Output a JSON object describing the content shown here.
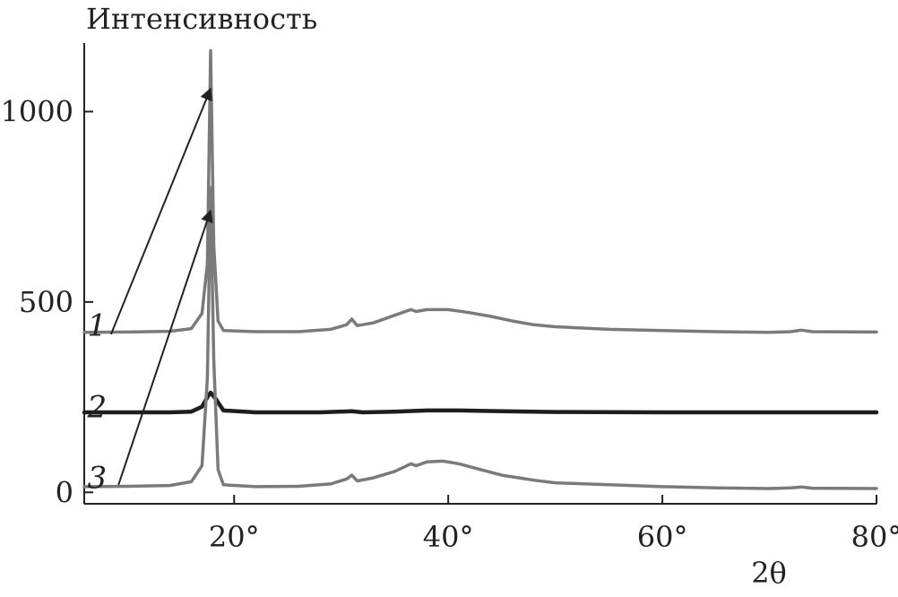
{
  "chart_data": {
    "type": "line",
    "ylabel": "Интенсивность",
    "xlabel": "2θ",
    "xlim": [
      6,
      80
    ],
    "ylim": [
      -30,
      1180
    ],
    "x_ticks": [
      {
        "value": 20,
        "label": "20°"
      },
      {
        "value": 40,
        "label": "40°"
      },
      {
        "value": 60,
        "label": "60°"
      },
      {
        "value": 80,
        "label": "80°"
      }
    ],
    "y_ticks": [
      {
        "value": 0,
        "label": "0"
      },
      {
        "value": 500,
        "label": "500"
      },
      {
        "value": 1000,
        "label": "1000"
      }
    ],
    "grid": false,
    "series": [
      {
        "name": "1",
        "color": "#7a7a7a",
        "points": [
          [
            6,
            420
          ],
          [
            10,
            421
          ],
          [
            14,
            423
          ],
          [
            16,
            430
          ],
          [
            17,
            470
          ],
          [
            17.5,
            600
          ],
          [
            17.8,
            1160
          ],
          [
            18.1,
            650
          ],
          [
            18.5,
            450
          ],
          [
            19,
            425
          ],
          [
            22,
            422
          ],
          [
            26,
            422
          ],
          [
            29,
            428
          ],
          [
            30.5,
            440
          ],
          [
            31,
            455
          ],
          [
            31.5,
            438
          ],
          [
            33,
            445
          ],
          [
            35,
            465
          ],
          [
            36.5,
            480
          ],
          [
            37,
            475
          ],
          [
            38,
            480
          ],
          [
            40,
            480
          ],
          [
            42,
            472
          ],
          [
            44,
            462
          ],
          [
            46,
            450
          ],
          [
            48,
            440
          ],
          [
            50,
            435
          ],
          [
            55,
            428
          ],
          [
            60,
            425
          ],
          [
            65,
            422
          ],
          [
            70,
            420
          ],
          [
            72,
            422
          ],
          [
            73,
            426
          ],
          [
            74,
            422
          ],
          [
            80,
            421
          ]
        ]
      },
      {
        "name": "2",
        "color": "#1e1e1e",
        "points": [
          [
            6,
            210
          ],
          [
            14,
            210
          ],
          [
            16,
            212
          ],
          [
            17,
            225
          ],
          [
            17.5,
            250
          ],
          [
            17.8,
            262
          ],
          [
            18.3,
            245
          ],
          [
            19,
            215
          ],
          [
            22,
            210
          ],
          [
            28,
            210
          ],
          [
            31,
            213
          ],
          [
            32,
            210
          ],
          [
            35,
            212
          ],
          [
            38,
            215
          ],
          [
            41,
            215
          ],
          [
            45,
            213
          ],
          [
            50,
            211
          ],
          [
            60,
            210
          ],
          [
            70,
            210
          ],
          [
            80,
            210
          ]
        ]
      },
      {
        "name": "3",
        "color": "#7a7a7a",
        "points": [
          [
            6,
            15
          ],
          [
            10,
            16
          ],
          [
            14,
            18
          ],
          [
            16,
            28
          ],
          [
            17,
            70
          ],
          [
            17.5,
            300
          ],
          [
            17.8,
            800
          ],
          [
            18.1,
            350
          ],
          [
            18.5,
            60
          ],
          [
            19,
            20
          ],
          [
            22,
            15
          ],
          [
            26,
            16
          ],
          [
            29,
            22
          ],
          [
            30.5,
            35
          ],
          [
            31,
            45
          ],
          [
            31.5,
            30
          ],
          [
            33,
            38
          ],
          [
            35,
            55
          ],
          [
            36.5,
            75
          ],
          [
            37,
            70
          ],
          [
            38,
            80
          ],
          [
            39.5,
            82
          ],
          [
            41,
            75
          ],
          [
            43,
            60
          ],
          [
            45,
            45
          ],
          [
            48,
            32
          ],
          [
            50,
            25
          ],
          [
            55,
            20
          ],
          [
            60,
            15
          ],
          [
            65,
            12
          ],
          [
            70,
            10
          ],
          [
            72,
            12
          ],
          [
            73,
            14
          ],
          [
            74,
            11
          ],
          [
            80,
            10
          ]
        ]
      }
    ],
    "annotations": [
      {
        "series": "1",
        "label": "1",
        "text_at": [
          7.2,
          440
        ],
        "arrow_from": [
          8.5,
          415
        ],
        "arrow_to": [
          17.8,
          1060
        ]
      },
      {
        "series": "2",
        "label": "2",
        "text_at": [
          7.2,
          225
        ],
        "arrow_from": null,
        "arrow_to": null
      },
      {
        "series": "3",
        "label": "3",
        "text_at": [
          7.2,
          40
        ],
        "arrow_from": [
          9.2,
          20
        ],
        "arrow_to": [
          17.8,
          740
        ]
      }
    ]
  }
}
